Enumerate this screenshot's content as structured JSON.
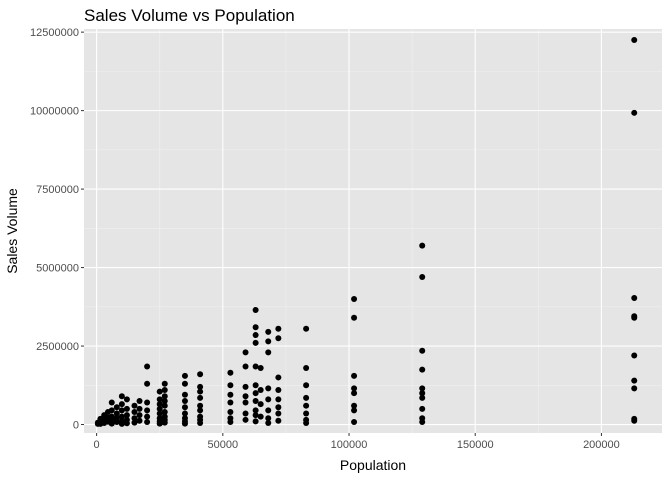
{
  "chart_data": {
    "type": "scatter",
    "title": "Sales Volume vs Population",
    "xlabel": "Population",
    "ylabel": "Sales Volume",
    "xlim": [
      -5000,
      224000
    ],
    "ylim": [
      -270000,
      12600000
    ],
    "x_ticks": [
      0,
      50000,
      100000,
      150000,
      200000
    ],
    "x_tick_labels": [
      "0",
      "50000",
      "100000",
      "150000",
      "200000"
    ],
    "y_ticks": [
      0,
      2500000,
      5000000,
      7500000,
      10000000,
      12500000
    ],
    "y_tick_labels": [
      "0",
      "2500000",
      "5000000",
      "7500000",
      "10000000",
      "12500000"
    ],
    "grid": true,
    "colors": {
      "panel": "#e5e5e5",
      "grid_major": "#ffffff",
      "grid_minor": "#f0f0f0",
      "point": "#000000",
      "tick": "#333333"
    },
    "points": [
      [
        213000,
        12250000
      ],
      [
        213000,
        9930000
      ],
      [
        213000,
        4030000
      ],
      [
        213000,
        3450000
      ],
      [
        213000,
        3400000
      ],
      [
        213000,
        2200000
      ],
      [
        213000,
        1400000
      ],
      [
        213000,
        1150000
      ],
      [
        213000,
        180000
      ],
      [
        213000,
        120000
      ],
      [
        129000,
        5700000
      ],
      [
        129000,
        4700000
      ],
      [
        129000,
        2350000
      ],
      [
        129000,
        1750000
      ],
      [
        129000,
        1150000
      ],
      [
        129000,
        1000000
      ],
      [
        129000,
        850000
      ],
      [
        129000,
        500000
      ],
      [
        129000,
        200000
      ],
      [
        129000,
        80000
      ],
      [
        102000,
        4000000
      ],
      [
        102000,
        3400000
      ],
      [
        102000,
        1550000
      ],
      [
        102000,
        1150000
      ],
      [
        102000,
        1000000
      ],
      [
        102000,
        600000
      ],
      [
        102000,
        450000
      ],
      [
        102000,
        80000
      ],
      [
        83000,
        3050000
      ],
      [
        83000,
        1800000
      ],
      [
        83000,
        1250000
      ],
      [
        83000,
        850000
      ],
      [
        83000,
        600000
      ],
      [
        83000,
        350000
      ],
      [
        83000,
        150000
      ],
      [
        83000,
        50000
      ],
      [
        72000,
        3050000
      ],
      [
        72000,
        2750000
      ],
      [
        72000,
        1500000
      ],
      [
        72000,
        1100000
      ],
      [
        72000,
        800000
      ],
      [
        72000,
        550000
      ],
      [
        72000,
        350000
      ],
      [
        72000,
        120000
      ],
      [
        68000,
        2950000
      ],
      [
        68000,
        2650000
      ],
      [
        68000,
        2300000
      ],
      [
        68000,
        1150000
      ],
      [
        68000,
        800000
      ],
      [
        68000,
        450000
      ],
      [
        68000,
        200000
      ],
      [
        68000,
        50000
      ],
      [
        63000,
        3650000
      ],
      [
        63000,
        3100000
      ],
      [
        63000,
        2850000
      ],
      [
        63000,
        2600000
      ],
      [
        63000,
        1850000
      ],
      [
        63000,
        1250000
      ],
      [
        63000,
        1000000
      ],
      [
        63000,
        750000
      ],
      [
        63000,
        450000
      ],
      [
        63000,
        300000
      ],
      [
        63000,
        100000
      ],
      [
        65000,
        1800000
      ],
      [
        65000,
        1100000
      ],
      [
        65000,
        650000
      ],
      [
        65000,
        250000
      ],
      [
        59000,
        2300000
      ],
      [
        59000,
        1850000
      ],
      [
        59000,
        1200000
      ],
      [
        59000,
        900000
      ],
      [
        59000,
        700000
      ],
      [
        59000,
        350000
      ],
      [
        59000,
        150000
      ],
      [
        53000,
        1650000
      ],
      [
        53000,
        1250000
      ],
      [
        53000,
        950000
      ],
      [
        53000,
        700000
      ],
      [
        53000,
        400000
      ],
      [
        53000,
        200000
      ],
      [
        53000,
        80000
      ],
      [
        41000,
        1600000
      ],
      [
        41000,
        1200000
      ],
      [
        41000,
        1050000
      ],
      [
        41000,
        850000
      ],
      [
        41000,
        600000
      ],
      [
        41000,
        450000
      ],
      [
        41000,
        250000
      ],
      [
        41000,
        150000
      ],
      [
        41000,
        50000
      ],
      [
        35000,
        1550000
      ],
      [
        35000,
        1300000
      ],
      [
        35000,
        950000
      ],
      [
        35000,
        750000
      ],
      [
        35000,
        550000
      ],
      [
        35000,
        350000
      ],
      [
        35000,
        200000
      ],
      [
        35000,
        100000
      ],
      [
        35000,
        30000
      ],
      [
        27000,
        1300000
      ],
      [
        27000,
        1100000
      ],
      [
        27000,
        900000
      ],
      [
        27000,
        750000
      ],
      [
        27000,
        600000
      ],
      [
        27000,
        400000
      ],
      [
        27000,
        250000
      ],
      [
        27000,
        150000
      ],
      [
        27000,
        60000
      ],
      [
        25000,
        1050000
      ],
      [
        25000,
        800000
      ],
      [
        25000,
        650000
      ],
      [
        25000,
        500000
      ],
      [
        25000,
        350000
      ],
      [
        25000,
        200000
      ],
      [
        25000,
        100000
      ],
      [
        25000,
        30000
      ],
      [
        20000,
        1850000
      ],
      [
        20000,
        1300000
      ],
      [
        20000,
        700000
      ],
      [
        20000,
        450000
      ],
      [
        20000,
        250000
      ],
      [
        20000,
        80000
      ],
      [
        17000,
        750000
      ],
      [
        17000,
        500000
      ],
      [
        17000,
        300000
      ],
      [
        17000,
        120000
      ],
      [
        15000,
        600000
      ],
      [
        15000,
        400000
      ],
      [
        15000,
        200000
      ],
      [
        15000,
        60000
      ],
      [
        12000,
        800000
      ],
      [
        12000,
        500000
      ],
      [
        12000,
        300000
      ],
      [
        12000,
        150000
      ],
      [
        12000,
        40000
      ],
      [
        10000,
        900000
      ],
      [
        10000,
        650000
      ],
      [
        10000,
        450000
      ],
      [
        10000,
        250000
      ],
      [
        10000,
        100000
      ],
      [
        10000,
        20000
      ],
      [
        8000,
        550000
      ],
      [
        8000,
        350000
      ],
      [
        8000,
        200000
      ],
      [
        8000,
        80000
      ],
      [
        6000,
        700000
      ],
      [
        6000,
        450000
      ],
      [
        6000,
        250000
      ],
      [
        6000,
        120000
      ],
      [
        6000,
        30000
      ],
      [
        4500,
        400000
      ],
      [
        4500,
        220000
      ],
      [
        4500,
        90000
      ],
      [
        3000,
        300000
      ],
      [
        3000,
        150000
      ],
      [
        3000,
        50000
      ],
      [
        1500,
        180000
      ],
      [
        1500,
        80000
      ],
      [
        1500,
        20000
      ],
      [
        500,
        60000
      ],
      [
        500,
        20000
      ]
    ]
  }
}
